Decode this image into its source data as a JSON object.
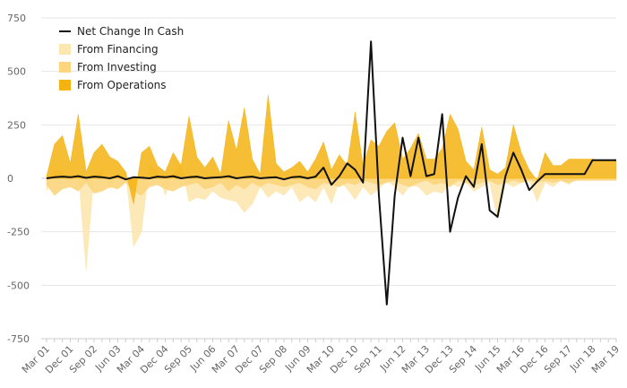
{
  "chart_data": {
    "type": "area",
    "title": "",
    "xlabel": "",
    "ylabel": "",
    "ylim": [
      -750,
      750
    ],
    "y_ticks": [
      750,
      500,
      250,
      0,
      -250,
      -500,
      -750
    ],
    "x_tick_labels": [
      "Mar 01",
      "Dec 01",
      "Sep 02",
      "Jun 03",
      "Mar 04",
      "Dec 04",
      "Sep 05",
      "Jun 06",
      "Mar 07",
      "Dec 07",
      "Sep 08",
      "Jun 09",
      "Mar 10",
      "Dec 10",
      "Sep 11",
      "Jun 12",
      "Mar 13",
      "Dec 13",
      "Sep 14",
      "Jun 15",
      "Mar 16",
      "Dec 16",
      "Sep 17",
      "Jun 18",
      "Mar 19"
    ],
    "x_quarters": 73,
    "grid": true,
    "legend_position": "top-left",
    "colors": {
      "net": "#111111",
      "financing": "#fde7b0",
      "investing": "#fcd57c",
      "operations": "#f5b312"
    },
    "series": [
      {
        "name": "Net Change In Cash",
        "kind": "line",
        "values": [
          0,
          5,
          8,
          5,
          10,
          2,
          8,
          5,
          0,
          10,
          -5,
          5,
          3,
          0,
          8,
          5,
          10,
          0,
          5,
          8,
          0,
          3,
          5,
          10,
          0,
          5,
          8,
          0,
          3,
          5,
          -5,
          5,
          8,
          0,
          8,
          50,
          -30,
          10,
          70,
          40,
          -20,
          640,
          -80,
          -590,
          -80,
          190,
          10,
          190,
          10,
          20,
          300,
          -250,
          -90,
          10,
          -40,
          160,
          -150,
          -180,
          10,
          120,
          40,
          -55,
          -15,
          20,
          20,
          20,
          20,
          20,
          20,
          85,
          85,
          85,
          85
        ]
      },
      {
        "name": "From Financing",
        "kind": "area",
        "values": [
          -60,
          40,
          30,
          -20,
          30,
          -430,
          20,
          40,
          -50,
          20,
          30,
          -320,
          -250,
          60,
          40,
          -80,
          20,
          70,
          -110,
          -90,
          -100,
          -60,
          -90,
          -100,
          -110,
          -160,
          -120,
          -40,
          -90,
          -60,
          -80,
          -40,
          -110,
          -80,
          -110,
          -40,
          -120,
          -10,
          -50,
          -100,
          -40,
          -80,
          -50,
          -10,
          -40,
          -80,
          -30,
          -40,
          -80,
          -60,
          -70,
          -20,
          -40,
          -20,
          -60,
          -40,
          -20,
          -190,
          -20,
          -40,
          -20,
          -10,
          -110,
          -20,
          -40,
          -10,
          -30,
          0,
          0,
          0,
          0,
          0,
          0
        ]
      },
      {
        "name": "From Investing",
        "kind": "area",
        "values": [
          -30,
          -80,
          -50,
          -40,
          -60,
          -20,
          -70,
          -60,
          -40,
          -50,
          -20,
          -60,
          -80,
          -40,
          -30,
          -50,
          -60,
          -40,
          -30,
          -20,
          -50,
          -40,
          -20,
          -60,
          -30,
          -50,
          -20,
          -40,
          -20,
          -30,
          -40,
          -30,
          -20,
          -40,
          -50,
          -20,
          -30,
          -40,
          -20,
          -30,
          -10,
          -20,
          -30,
          -20,
          -10,
          -30,
          -40,
          -20,
          -10,
          -30,
          -20,
          -40,
          -10,
          -20,
          -30,
          -20,
          -10,
          -30,
          -20,
          -10,
          -20,
          -10,
          -20,
          -10,
          -20,
          -10,
          -20,
          -10,
          -10,
          -10,
          -10,
          -10,
          -10
        ]
      },
      {
        "name": "From Operations",
        "kind": "area",
        "values": [
          10,
          160,
          200,
          70,
          300,
          30,
          120,
          160,
          100,
          80,
          30,
          -120,
          120,
          150,
          60,
          30,
          120,
          60,
          290,
          100,
          50,
          100,
          20,
          270,
          130,
          330,
          90,
          20,
          390,
          70,
          30,
          50,
          80,
          30,
          90,
          170,
          40,
          110,
          60,
          310,
          60,
          180,
          150,
          220,
          260,
          90,
          140,
          210,
          90,
          90,
          140,
          300,
          230,
          80,
          40,
          240,
          40,
          20,
          50,
          250,
          120,
          40,
          -10,
          120,
          60,
          60,
          90,
          90,
          90,
          90,
          80,
          80,
          80
        ]
      }
    ]
  }
}
